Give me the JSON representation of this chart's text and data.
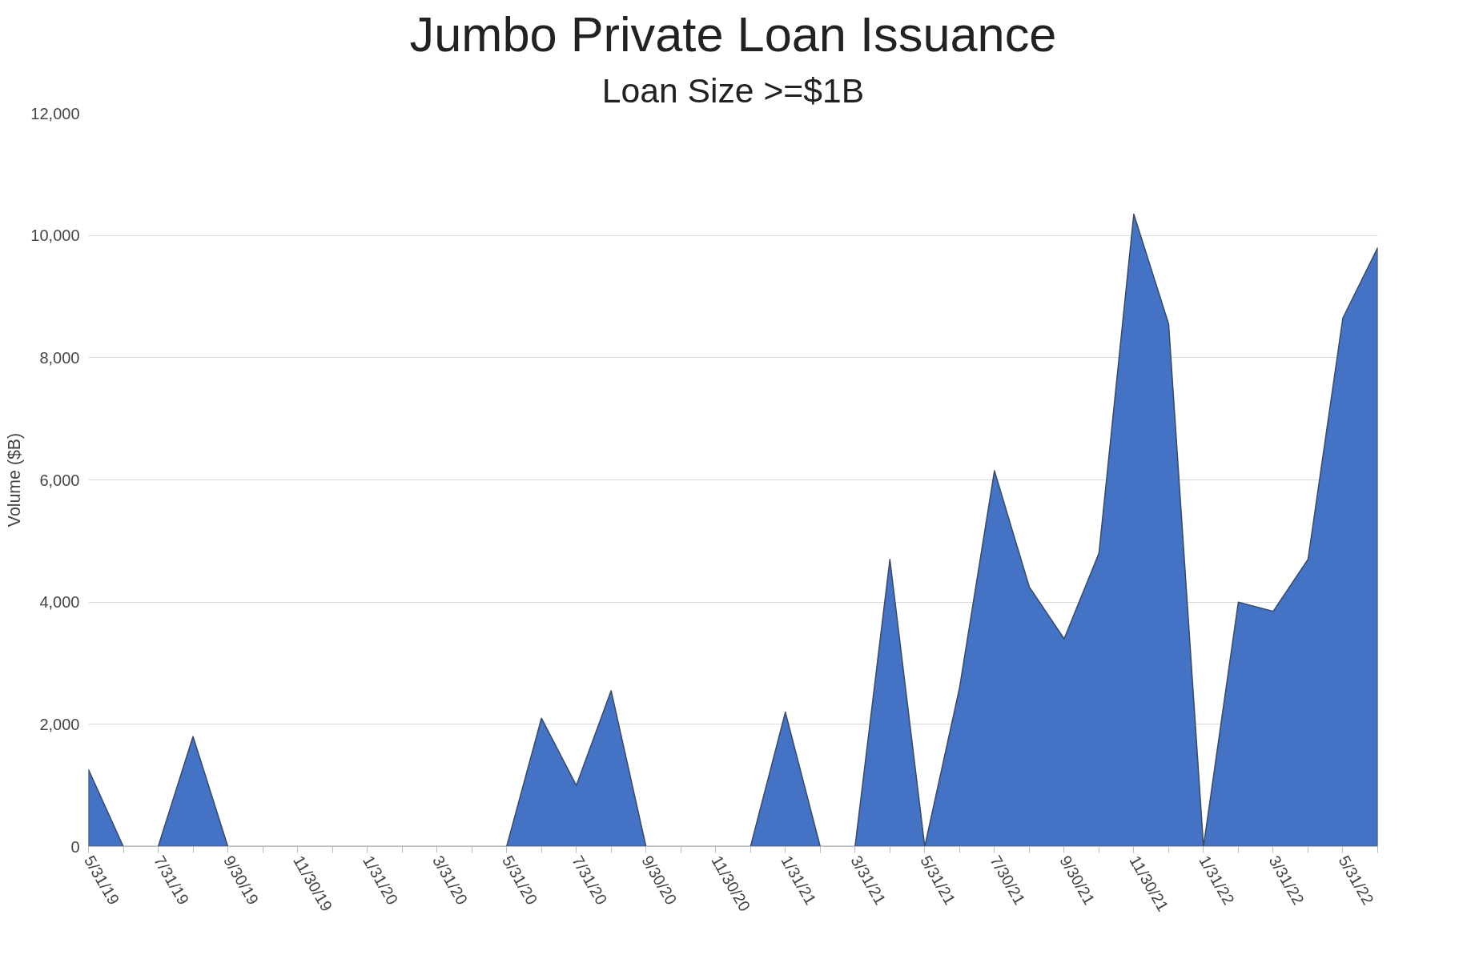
{
  "chart_data": {
    "type": "area",
    "title": "Jumbo Private Loan Issuance",
    "subtitle": "Loan Size >=$1B",
    "ylabel": "Volume ($B)",
    "categories": [
      "5/31/19",
      null,
      "7/31/19",
      null,
      "9/30/19",
      null,
      "11/30/19",
      null,
      "1/31/20",
      null,
      "3/31/20",
      null,
      "5/31/20",
      null,
      "7/31/20",
      null,
      "9/30/20",
      null,
      "11/30/20",
      null,
      "1/31/21",
      null,
      "3/31/21",
      null,
      "5/31/21",
      null,
      "7/30/21",
      null,
      "9/30/21",
      null,
      "11/30/21",
      null,
      "1/31/22",
      null,
      "3/31/22",
      null,
      "5/31/22",
      null
    ],
    "series": [
      {
        "color": "#4472c4",
        "values": [
          1260,
          0,
          0,
          1800,
          0,
          0,
          0,
          0,
          0,
          0,
          0,
          0,
          0,
          2100,
          1000,
          2550,
          0,
          0,
          0,
          0,
          2200,
          0,
          0,
          4700,
          0,
          2600,
          6150,
          4250,
          3400,
          4800,
          10350,
          8550,
          0,
          4000,
          3850,
          4700,
          8650,
          9800
        ]
      }
    ],
    "ylim": [
      0,
      12000
    ],
    "yticks": [
      {
        "value": 0,
        "label": "0"
      },
      {
        "value": 2000,
        "label": "2,000"
      },
      {
        "value": 4000,
        "label": "4,000"
      },
      {
        "value": 6000,
        "label": "6,000"
      },
      {
        "value": 8000,
        "label": "8,000"
      },
      {
        "value": 10000,
        "label": "10,000"
      },
      {
        "value": 12000,
        "label": "12,000"
      }
    ],
    "grid": "y"
  }
}
